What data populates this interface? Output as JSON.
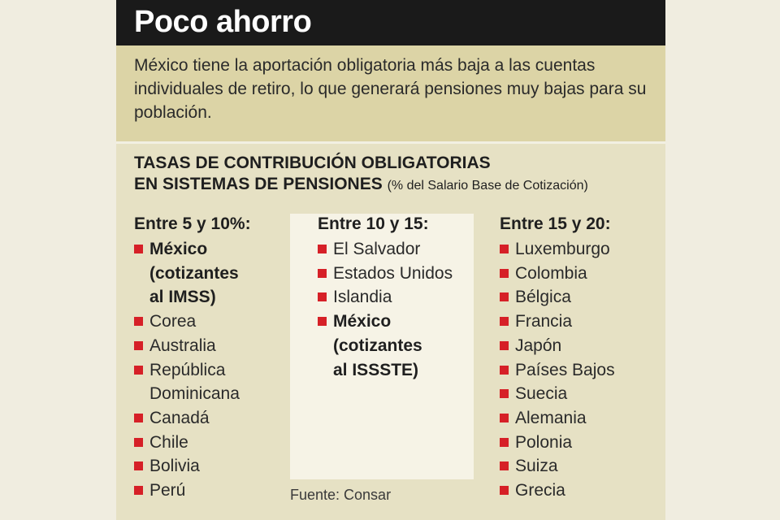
{
  "title": "Poco ahorro",
  "intro": "México tiene la aportación obligatoria más baja a las cuentas individuales de retiro, lo que generará pensiones muy bajas para su población.",
  "heading": {
    "line1": "TASAS DE CONTRIBUCIÓN OBLIGATORIAS",
    "line2": "EN SISTEMAS DE PENSIONES",
    "note": "(% del Salario Base de Cotización)"
  },
  "columns": [
    {
      "header": "Entre 5 y 10%:",
      "items": [
        {
          "lines": [
            "México",
            "(cotizantes",
            "al IMSS)"
          ],
          "bold": true
        },
        {
          "lines": [
            "Corea"
          ],
          "bold": false
        },
        {
          "lines": [
            "Australia"
          ],
          "bold": false
        },
        {
          "lines": [
            "República",
            "Dominicana"
          ],
          "bold": false
        },
        {
          "lines": [
            "Canadá"
          ],
          "bold": false
        },
        {
          "lines": [
            "Chile"
          ],
          "bold": false
        },
        {
          "lines": [
            "Bolivia"
          ],
          "bold": false
        },
        {
          "lines": [
            "Perú"
          ],
          "bold": false
        }
      ]
    },
    {
      "header": "Entre 10 y 15:",
      "items": [
        {
          "lines": [
            "El Salvador"
          ],
          "bold": false
        },
        {
          "lines": [
            "Estados Unidos"
          ],
          "bold": false
        },
        {
          "lines": [
            "Islandia"
          ],
          "bold": false
        },
        {
          "lines": [
            "México",
            "(cotizantes",
            "al ISSSTE)"
          ],
          "bold": true
        }
      ]
    },
    {
      "header": "Entre 15 y 20:",
      "items": [
        {
          "lines": [
            "Luxemburgo"
          ],
          "bold": false
        },
        {
          "lines": [
            "Colombia"
          ],
          "bold": false
        },
        {
          "lines": [
            "Bélgica"
          ],
          "bold": false
        },
        {
          "lines": [
            "Francia"
          ],
          "bold": false
        },
        {
          "lines": [
            "Japón"
          ],
          "bold": false
        },
        {
          "lines": [
            "Países Bajos"
          ],
          "bold": false
        },
        {
          "lines": [
            "Suecia"
          ],
          "bold": false
        },
        {
          "lines": [
            "Alemania"
          ],
          "bold": false
        },
        {
          "lines": [
            "Polonia"
          ],
          "bold": false
        },
        {
          "lines": [
            "Suiza"
          ],
          "bold": false
        },
        {
          "lines": [
            "Grecia"
          ],
          "bold": false
        }
      ]
    }
  ],
  "source": "Fuente: Consar",
  "colors": {
    "title_bg": "#1a1a1a",
    "intro_bg": "#dcd4a6",
    "card_bg": "#e6e1c4",
    "panel_bg": "#f6f3e6",
    "bullet": "#d62027"
  }
}
